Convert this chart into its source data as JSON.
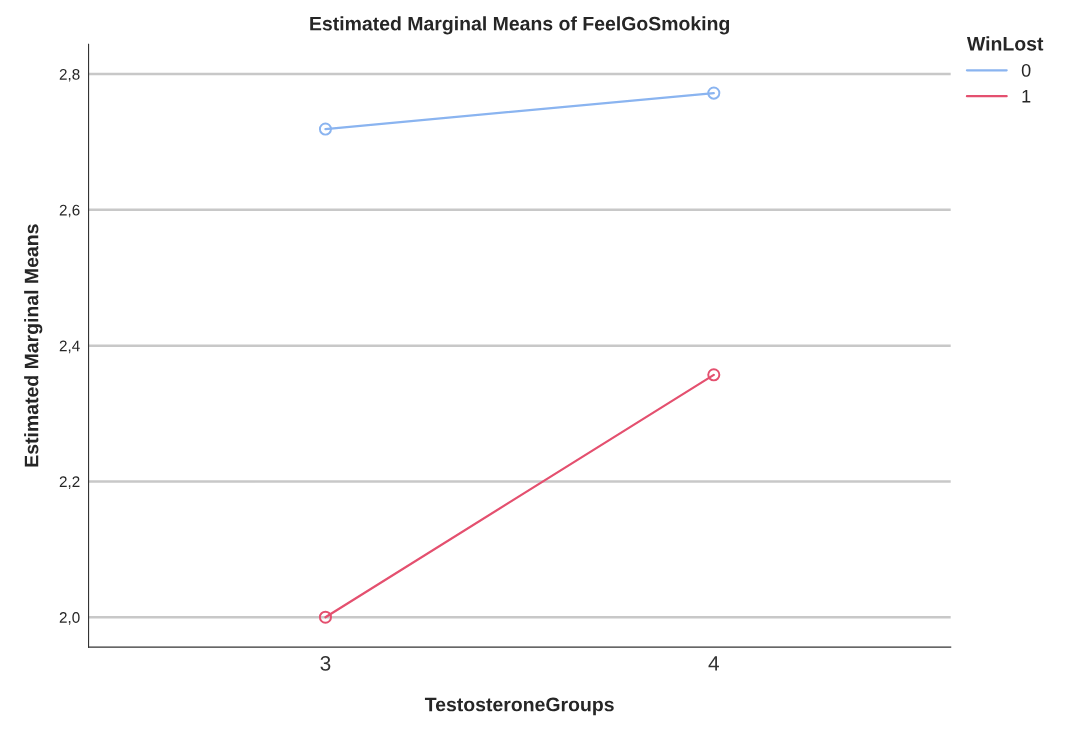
{
  "chart_data": {
    "type": "line",
    "title": "Estimated Marginal Means of FeelGoSmoking",
    "xlabel": "TestosteroneGroups",
    "ylabel": "Estimated Marginal Means",
    "legend_title": "WinLost",
    "categories": [
      "3",
      "4"
    ],
    "series": [
      {
        "name": "0",
        "color": "#8ab4f0",
        "values": [
          2.719,
          2.772
        ]
      },
      {
        "name": "1",
        "color": "#e4506f",
        "values": [
          2.0,
          2.357
        ]
      }
    ],
    "ylim": [
      1.956,
      2.844
    ],
    "yticks": [
      {
        "value": 2.0,
        "label": "2,0"
      },
      {
        "value": 2.2,
        "label": "2,2"
      },
      {
        "value": 2.4,
        "label": "2,4"
      },
      {
        "value": 2.6,
        "label": "2,6"
      },
      {
        "value": 2.8,
        "label": "2,8"
      }
    ],
    "grid": "y",
    "legend": "top right",
    "marker": "circle",
    "line_style": "solid"
  }
}
